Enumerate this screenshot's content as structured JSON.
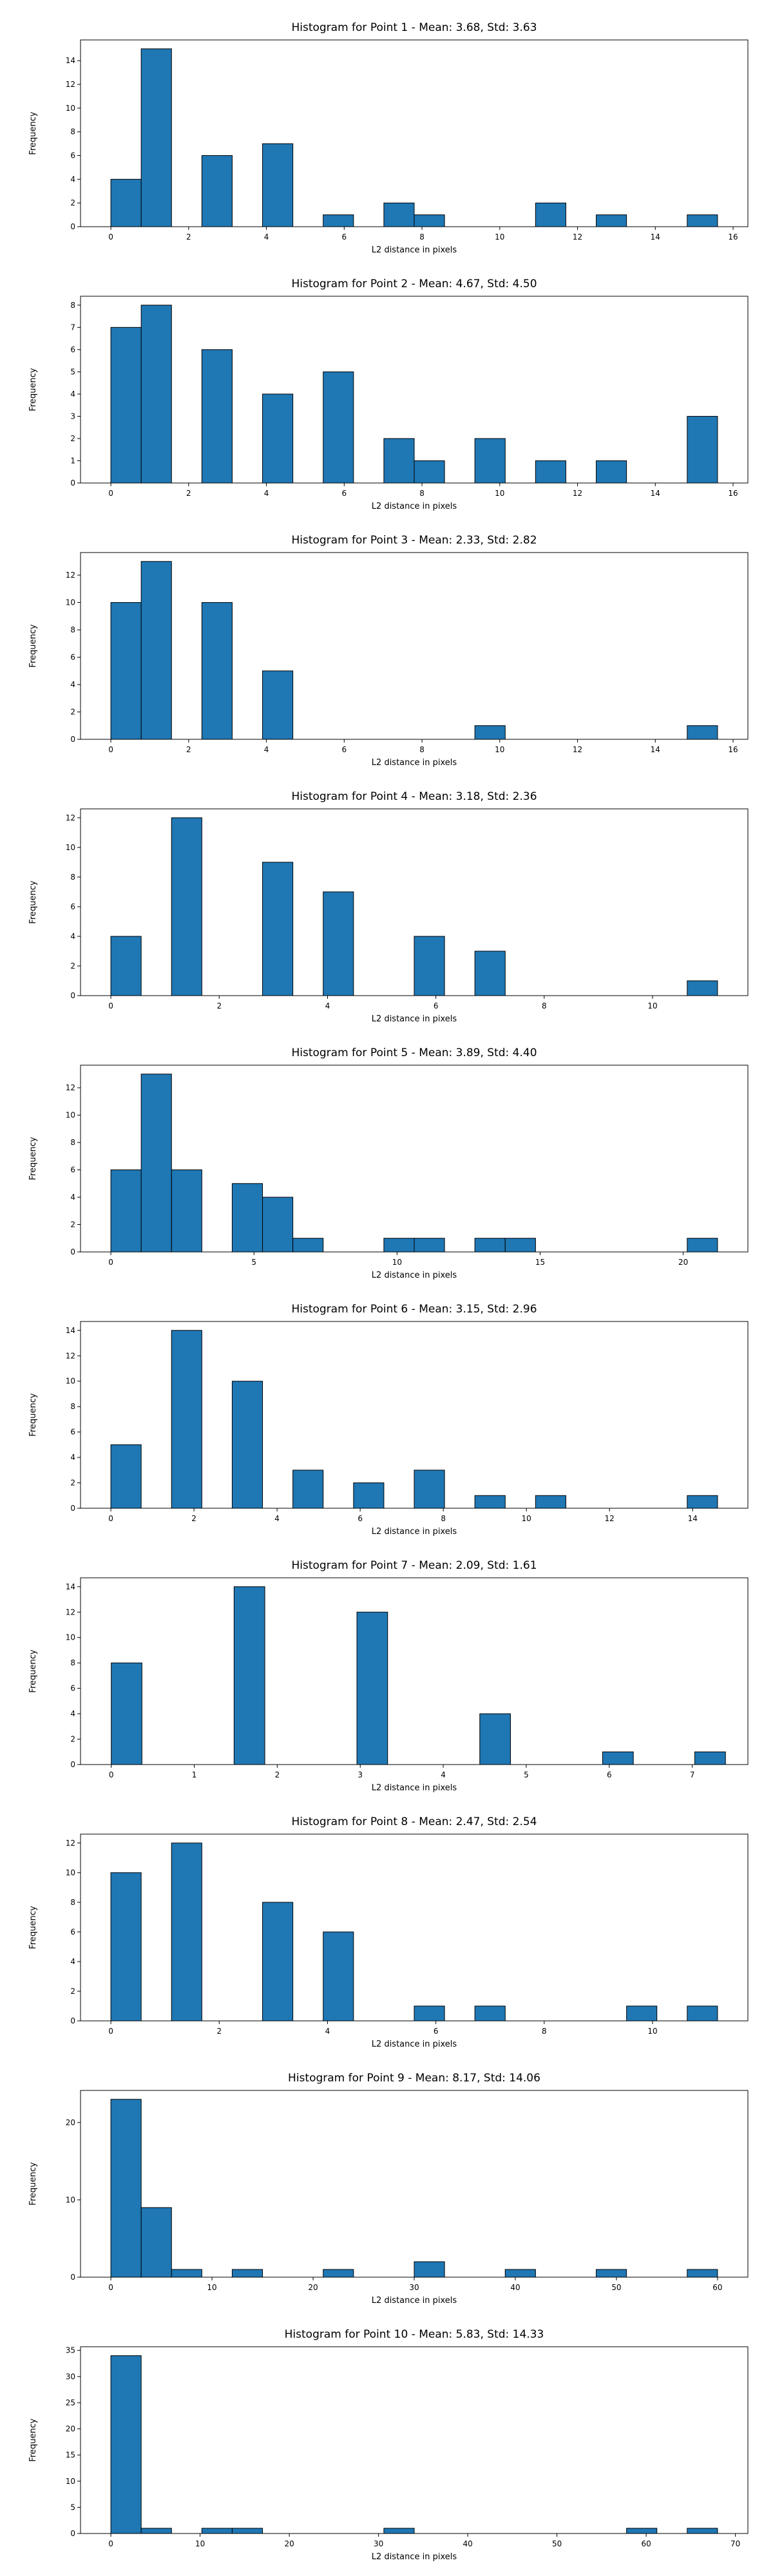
{
  "chart_data": [
    {
      "type": "bar",
      "title": "Histogram for Point 1 - Mean: 3.68, Std: 3.63",
      "xlabel": "L2 distance in pixels",
      "ylabel": "Frequency",
      "xlim": [
        -0.78,
        16.38
      ],
      "ylim": [
        0,
        15.75
      ],
      "xticks": [
        0,
        2,
        4,
        6,
        8,
        10,
        12,
        14,
        16
      ],
      "yticks": [
        0,
        2,
        4,
        6,
        8,
        10,
        12,
        14
      ],
      "grid": false,
      "bin_edges": [
        0.0,
        0.78,
        1.56,
        2.34,
        3.12,
        3.9,
        4.68,
        5.46,
        6.24,
        7.02,
        7.8,
        8.58,
        9.36,
        10.14,
        10.92,
        11.7,
        12.48,
        13.26,
        14.04,
        14.82,
        15.6
      ],
      "values": [
        4,
        15,
        0,
        6,
        0,
        7,
        0,
        1,
        0,
        2,
        1,
        0,
        0,
        0,
        2,
        0,
        1,
        0,
        0,
        1
      ]
    },
    {
      "type": "bar",
      "title": "Histogram for Point 2 - Mean: 4.67, Std: 4.50",
      "xlabel": "L2 distance in pixels",
      "ylabel": "Frequency",
      "xlim": [
        -0.78,
        16.38
      ],
      "ylim": [
        0,
        8.4
      ],
      "xticks": [
        0,
        2,
        4,
        6,
        8,
        10,
        12,
        14,
        16
      ],
      "yticks": [
        0,
        1,
        2,
        3,
        4,
        5,
        6,
        7,
        8
      ],
      "grid": false,
      "bin_edges": [
        0.0,
        0.78,
        1.56,
        2.34,
        3.12,
        3.9,
        4.68,
        5.46,
        6.24,
        7.02,
        7.8,
        8.58,
        9.36,
        10.14,
        10.92,
        11.7,
        12.48,
        13.26,
        14.04,
        14.82,
        15.6
      ],
      "values": [
        7,
        8,
        0,
        6,
        0,
        4,
        0,
        5,
        0,
        2,
        1,
        0,
        2,
        0,
        1,
        0,
        1,
        0,
        0,
        3
      ]
    },
    {
      "type": "bar",
      "title": "Histogram for Point 3 - Mean: 2.33, Std: 2.82",
      "xlabel": "L2 distance in pixels",
      "ylabel": "Frequency",
      "xlim": [
        -0.78,
        16.38
      ],
      "ylim": [
        0,
        13.65
      ],
      "xticks": [
        0,
        2,
        4,
        6,
        8,
        10,
        12,
        14,
        16
      ],
      "yticks": [
        0,
        2,
        4,
        6,
        8,
        10,
        12
      ],
      "grid": false,
      "bin_edges": [
        0.0,
        0.78,
        1.56,
        2.34,
        3.12,
        3.9,
        4.68,
        5.46,
        6.24,
        7.02,
        7.8,
        8.58,
        9.36,
        10.14,
        10.92,
        11.7,
        12.48,
        13.26,
        14.04,
        14.82,
        15.6
      ],
      "values": [
        10,
        13,
        0,
        10,
        0,
        5,
        0,
        0,
        0,
        0,
        0,
        0,
        1,
        0,
        0,
        0,
        0,
        0,
        0,
        1
      ]
    },
    {
      "type": "bar",
      "title": "Histogram for Point 4 - Mean: 3.18, Std: 2.36",
      "xlabel": "L2 distance in pixels",
      "ylabel": "Frequency",
      "xlim": [
        -0.56,
        11.76
      ],
      "ylim": [
        0,
        12.6
      ],
      "xticks": [
        0,
        2,
        4,
        6,
        8,
        10
      ],
      "yticks": [
        0,
        2,
        4,
        6,
        8,
        10,
        12
      ],
      "grid": false,
      "bin_edges": [
        0.0,
        0.56,
        1.12,
        1.68,
        2.24,
        2.8,
        3.36,
        3.92,
        4.48,
        5.04,
        5.6,
        6.16,
        6.72,
        7.28,
        7.84,
        8.4,
        8.96,
        9.52,
        10.08,
        10.64,
        11.2
      ],
      "values": [
        4,
        0,
        12,
        0,
        0,
        9,
        0,
        7,
        0,
        0,
        4,
        0,
        3,
        0,
        0,
        0,
        0,
        0,
        0,
        1
      ]
    },
    {
      "type": "bar",
      "title": "Histogram for Point 5 - Mean: 3.89, Std: 4.40",
      "xlabel": "L2 distance in pixels",
      "ylabel": "Frequency",
      "xlim": [
        -1.06,
        22.26
      ],
      "ylim": [
        0,
        13.65
      ],
      "xticks": [
        0,
        5,
        10,
        15,
        20
      ],
      "yticks": [
        0,
        2,
        4,
        6,
        8,
        10,
        12
      ],
      "grid": false,
      "bin_edges": [
        0.0,
        1.06,
        2.12,
        3.18,
        4.24,
        5.3,
        6.36,
        7.42,
        8.48,
        9.54,
        10.6,
        11.66,
        12.72,
        13.78,
        14.84,
        15.9,
        16.96,
        18.02,
        19.08,
        20.14,
        21.2
      ],
      "values": [
        6,
        13,
        6,
        0,
        5,
        4,
        1,
        0,
        0,
        1,
        1,
        0,
        1,
        1,
        0,
        0,
        0,
        0,
        0,
        1
      ]
    },
    {
      "type": "bar",
      "title": "Histogram for Point 6 - Mean: 3.15, Std: 2.96",
      "xlabel": "L2 distance in pixels",
      "ylabel": "Frequency",
      "xlim": [
        -0.73,
        15.33
      ],
      "ylim": [
        0,
        14.7
      ],
      "xticks": [
        0,
        2,
        4,
        6,
        8,
        10,
        12,
        14
      ],
      "yticks": [
        0,
        2,
        4,
        6,
        8,
        10,
        12,
        14
      ],
      "grid": false,
      "bin_edges": [
        0.0,
        0.73,
        1.46,
        2.19,
        2.92,
        3.65,
        4.38,
        5.11,
        5.84,
        6.57,
        7.3,
        8.03,
        8.76,
        9.49,
        10.22,
        10.95,
        11.68,
        12.41,
        13.14,
        13.87,
        14.6
      ],
      "values": [
        5,
        0,
        14,
        0,
        10,
        0,
        3,
        0,
        2,
        0,
        3,
        0,
        1,
        0,
        1,
        0,
        0,
        0,
        0,
        1
      ]
    },
    {
      "type": "bar",
      "title": "Histogram for Point 7 - Mean: 2.09, Std: 1.61",
      "xlabel": "L2 distance in pixels",
      "ylabel": "Frequency",
      "xlim": [
        -0.37,
        7.67
      ],
      "ylim": [
        0,
        14.7
      ],
      "xticks": [
        0,
        1,
        2,
        3,
        4,
        5,
        6,
        7
      ],
      "yticks": [
        0,
        2,
        4,
        6,
        8,
        10,
        12,
        14
      ],
      "grid": false,
      "bin_edges": [
        0.0,
        0.37,
        0.74,
        1.11,
        1.48,
        1.85,
        2.22,
        2.59,
        2.96,
        3.33,
        3.7,
        4.07,
        4.44,
        4.81,
        5.18,
        5.55,
        5.92,
        6.29,
        6.66,
        7.03,
        7.4
      ],
      "values": [
        8,
        0,
        0,
        0,
        14,
        0,
        0,
        0,
        12,
        0,
        0,
        0,
        4,
        0,
        0,
        0,
        1,
        0,
        0,
        1
      ]
    },
    {
      "type": "bar",
      "title": "Histogram for Point 8 - Mean: 2.47, Std: 2.54",
      "xlabel": "L2 distance in pixels",
      "ylabel": "Frequency",
      "xlim": [
        -0.56,
        11.76
      ],
      "ylim": [
        0,
        12.6
      ],
      "xticks": [
        0,
        2,
        4,
        6,
        8,
        10
      ],
      "yticks": [
        0,
        2,
        4,
        6,
        8,
        10,
        12
      ],
      "grid": false,
      "bin_edges": [
        0.0,
        0.56,
        1.12,
        1.68,
        2.24,
        2.8,
        3.36,
        3.92,
        4.48,
        5.04,
        5.6,
        6.16,
        6.72,
        7.28,
        7.84,
        8.4,
        8.96,
        9.52,
        10.08,
        10.64,
        11.2
      ],
      "values": [
        10,
        0,
        12,
        0,
        0,
        8,
        0,
        6,
        0,
        0,
        1,
        0,
        1,
        0,
        0,
        0,
        0,
        1,
        0,
        1
      ]
    },
    {
      "type": "bar",
      "title": "Histogram for Point 9 - Mean: 8.17, Std: 14.06",
      "xlabel": "L2 distance in pixels",
      "ylabel": "Frequency",
      "xlim": [
        -3.0,
        63.0
      ],
      "ylim": [
        0,
        24.15
      ],
      "xticks": [
        0,
        10,
        20,
        30,
        40,
        50,
        60
      ],
      "yticks": [
        0,
        10,
        20
      ],
      "grid": false,
      "bin_edges": [
        0.0,
        3.0,
        6.0,
        9.0,
        12.0,
        15.0,
        18.0,
        21.0,
        24.0,
        27.0,
        30.0,
        33.0,
        36.0,
        39.0,
        42.0,
        45.0,
        48.0,
        51.0,
        54.0,
        57.0,
        60.0
      ],
      "values": [
        23,
        9,
        1,
        0,
        1,
        0,
        0,
        1,
        0,
        0,
        2,
        0,
        0,
        1,
        0,
        0,
        1,
        0,
        0,
        1
      ]
    },
    {
      "type": "bar",
      "title": "Histogram for Point 10 - Mean: 5.83, Std: 14.33",
      "xlabel": "L2 distance in pixels",
      "ylabel": "Frequency",
      "xlim": [
        -3.4,
        71.4
      ],
      "ylim": [
        0,
        35.7
      ],
      "xticks": [
        0,
        10,
        20,
        30,
        40,
        50,
        60,
        70
      ],
      "yticks": [
        0,
        5,
        10,
        15,
        20,
        25,
        30,
        35
      ],
      "grid": false,
      "bin_edges": [
        0.0,
        3.4,
        6.8,
        10.2,
        13.6,
        17.0,
        20.4,
        23.8,
        27.2,
        30.6,
        34.0,
        37.4,
        40.8,
        44.2,
        47.6,
        51.0,
        54.4,
        57.8,
        61.2,
        64.6,
        68.0
      ],
      "values": [
        34,
        1,
        0,
        1,
        1,
        0,
        0,
        0,
        0,
        1,
        0,
        0,
        0,
        0,
        0,
        0,
        0,
        1,
        0,
        1
      ]
    }
  ]
}
